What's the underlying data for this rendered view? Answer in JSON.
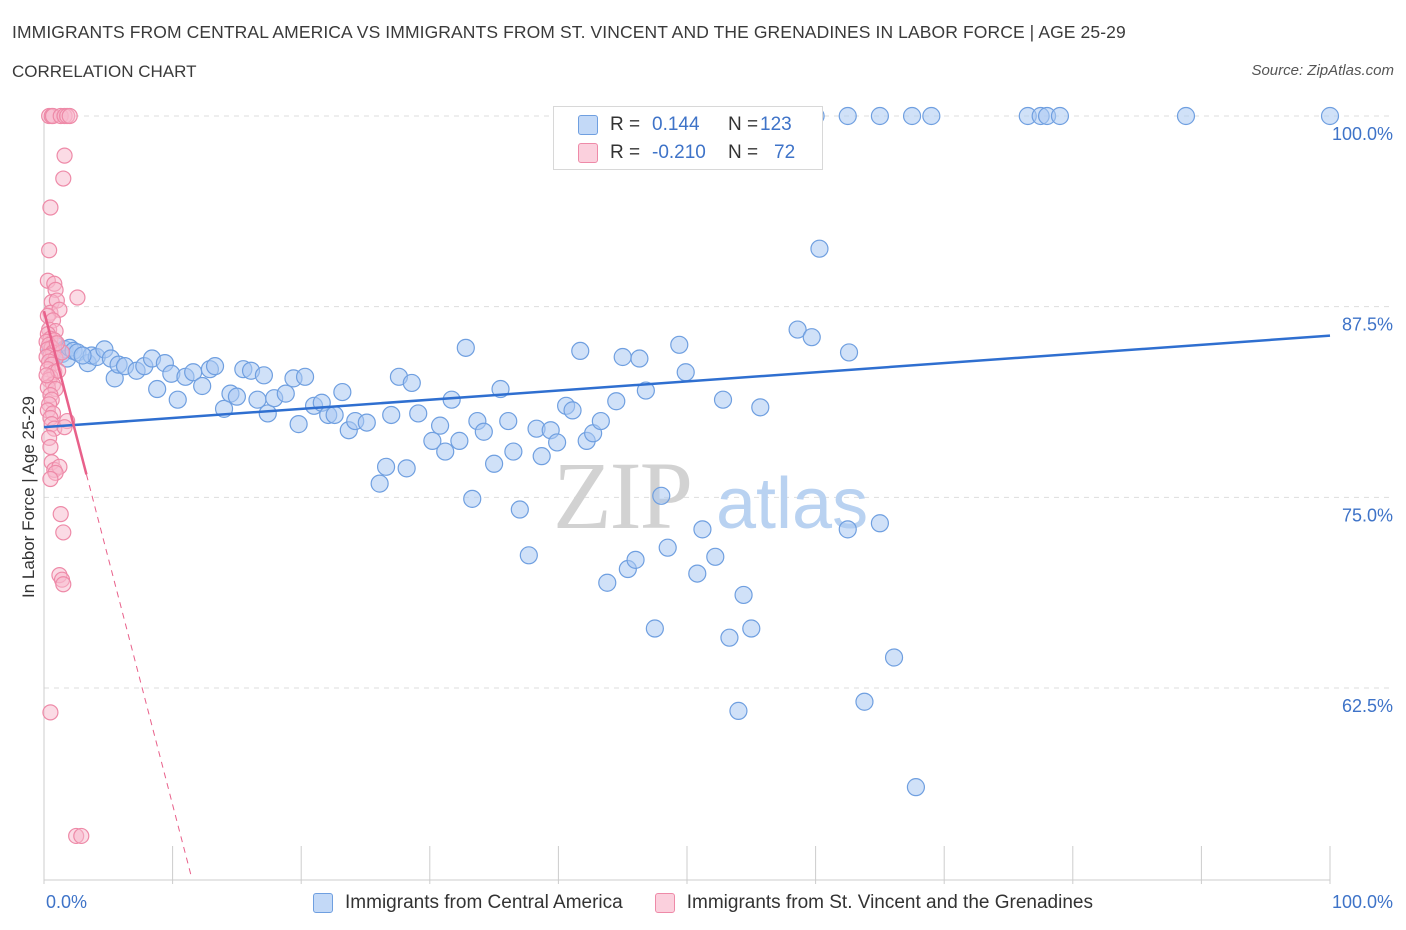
{
  "header": {
    "title": "IMMIGRANTS FROM CENTRAL AMERICA VS IMMIGRANTS FROM ST. VINCENT AND THE GRENADINES IN LABOR FORCE | AGE 25-29",
    "subtitle": "CORRELATION CHART",
    "source": "Source: ZipAtlas.com"
  },
  "watermark": "ZIPatlas",
  "colors": {
    "blue_fill": "#a9c8f3",
    "blue_stroke": "#6f9fe0",
    "blue_line": "#2f6fd0",
    "pink_fill": "#f7b8cc",
    "pink_stroke": "#ee8aa8",
    "pink_line": "#e8608a",
    "accent_text": "#3e73c8",
    "grid": "#dddddd"
  },
  "legend": {
    "rows": [
      {
        "r_label": "R =",
        "r_value": "0.144",
        "n_label": "N =",
        "n_value": "123",
        "color": "blue"
      },
      {
        "r_label": "R =",
        "r_value": "-0.210",
        "n_label": "N =",
        "n_value": "72",
        "color": "pink"
      }
    ]
  },
  "bottom_legend": [
    {
      "label": "Immigrants from Central America",
      "color": "blue"
    },
    {
      "label": "Immigrants from St. Vincent and the Grenadines",
      "color": "pink"
    }
  ],
  "chart_data": {
    "type": "scatter",
    "xlabel": "",
    "ylabel": "In Labor Force | Age 25-29",
    "xlim": [
      0,
      100
    ],
    "ylim": [
      50,
      101
    ],
    "x_tick_labels": [
      {
        "value": 0,
        "label": "0.0%"
      },
      {
        "value": 100,
        "label": "100.0%"
      }
    ],
    "y_tick_labels": [
      {
        "value": 100,
        "label": "100.0%"
      },
      {
        "value": 87.5,
        "label": "87.5%"
      },
      {
        "value": 75,
        "label": "75.0%"
      },
      {
        "value": 62.5,
        "label": "62.5%"
      }
    ],
    "x_minor_ticks": [
      0,
      10,
      20,
      30,
      40,
      50,
      60,
      70,
      80,
      90,
      100
    ],
    "grid": true,
    "series": [
      {
        "name": "Immigrants from Central America",
        "color": "blue",
        "trend": {
          "x": [
            0,
            100
          ],
          "y": [
            79.6,
            85.6
          ]
        },
        "points": [
          [
            0.5,
            84.6
          ],
          [
            0.8,
            84.2
          ],
          [
            1.0,
            84.9
          ],
          [
            1.2,
            84.5
          ],
          [
            1.4,
            84.4
          ],
          [
            1.6,
            84.7
          ],
          [
            1.8,
            84.1
          ],
          [
            2.0,
            84.8
          ],
          [
            2.3,
            84.6
          ],
          [
            2.6,
            84.5
          ],
          [
            3.4,
            83.8
          ],
          [
            3.7,
            84.3
          ],
          [
            4.1,
            84.2
          ],
          [
            4.7,
            84.7
          ],
          [
            5.2,
            84.1
          ],
          [
            5.5,
            82.8
          ],
          [
            5.8,
            83.7
          ],
          [
            6.3,
            83.6
          ],
          [
            7.2,
            83.3
          ],
          [
            7.8,
            83.6
          ],
          [
            8.4,
            84.1
          ],
          [
            8.8,
            82.1
          ],
          [
            9.4,
            83.8
          ],
          [
            9.9,
            83.1
          ],
          [
            10.4,
            81.4
          ],
          [
            11.0,
            82.9
          ],
          [
            11.6,
            83.2
          ],
          [
            12.3,
            82.3
          ],
          [
            12.9,
            83.4
          ],
          [
            13.3,
            83.6
          ],
          [
            14.0,
            80.8
          ],
          [
            14.5,
            81.8
          ],
          [
            15.0,
            81.6
          ],
          [
            15.5,
            83.4
          ],
          [
            16.1,
            83.3
          ],
          [
            16.6,
            81.4
          ],
          [
            17.1,
            83.0
          ],
          [
            17.4,
            80.5
          ],
          [
            17.9,
            81.5
          ],
          [
            18.8,
            81.8
          ],
          [
            19.4,
            82.8
          ],
          [
            19.8,
            79.8
          ],
          [
            20.3,
            82.9
          ],
          [
            21.0,
            81.0
          ],
          [
            21.6,
            81.2
          ],
          [
            22.1,
            80.4
          ],
          [
            22.6,
            80.4
          ],
          [
            23.2,
            81.9
          ],
          [
            23.7,
            79.4
          ],
          [
            24.2,
            80.0
          ],
          [
            25.1,
            79.9
          ],
          [
            26.1,
            75.9
          ],
          [
            26.6,
            77.0
          ],
          [
            27.0,
            80.4
          ],
          [
            27.6,
            82.9
          ],
          [
            28.2,
            76.9
          ],
          [
            28.6,
            82.5
          ],
          [
            29.1,
            80.5
          ],
          [
            30.2,
            78.7
          ],
          [
            30.8,
            79.7
          ],
          [
            31.2,
            78.0
          ],
          [
            31.7,
            81.4
          ],
          [
            32.3,
            78.7
          ],
          [
            32.8,
            84.8
          ],
          [
            33.3,
            74.9
          ],
          [
            33.7,
            80.0
          ],
          [
            34.2,
            79.3
          ],
          [
            35.0,
            77.2
          ],
          [
            35.5,
            82.1
          ],
          [
            36.1,
            80.0
          ],
          [
            36.5,
            78.0
          ],
          [
            37.0,
            74.2
          ],
          [
            37.7,
            71.2
          ],
          [
            38.3,
            79.5
          ],
          [
            38.7,
            77.7
          ],
          [
            39.4,
            79.4
          ],
          [
            39.9,
            78.6
          ],
          [
            40.6,
            81.0
          ],
          [
            41.1,
            80.7
          ],
          [
            41.7,
            84.6
          ],
          [
            42.2,
            78.7
          ],
          [
            42.7,
            79.2
          ],
          [
            43.3,
            80.0
          ],
          [
            43.8,
            69.4
          ],
          [
            44.5,
            81.3
          ],
          [
            45.0,
            84.2
          ],
          [
            45.4,
            70.3
          ],
          [
            46.0,
            70.9
          ],
          [
            46.3,
            84.1
          ],
          [
            46.8,
            82.0
          ],
          [
            47.5,
            66.4
          ],
          [
            48.0,
            75.1
          ],
          [
            48.5,
            71.7
          ],
          [
            49.4,
            85.0
          ],
          [
            49.9,
            83.2
          ],
          [
            50.8,
            70.0
          ],
          [
            51.2,
            72.9
          ],
          [
            52.2,
            71.1
          ],
          [
            52.8,
            81.4
          ],
          [
            53.3,
            65.8
          ],
          [
            54.0,
            61.0
          ],
          [
            54.4,
            68.6
          ],
          [
            55.0,
            66.4
          ],
          [
            55.7,
            80.9
          ],
          [
            58.6,
            86.0
          ],
          [
            59.7,
            85.5
          ],
          [
            60.3,
            91.3
          ],
          [
            62.5,
            72.9
          ],
          [
            62.6,
            84.5
          ],
          [
            63.8,
            61.6
          ],
          [
            65.0,
            73.3
          ],
          [
            66.1,
            64.5
          ],
          [
            67.8,
            56.0
          ],
          [
            56.5,
            100
          ],
          [
            57.5,
            100
          ],
          [
            60.0,
            100
          ],
          [
            62.5,
            100
          ],
          [
            65.0,
            100
          ],
          [
            67.5,
            100
          ],
          [
            69.0,
            100
          ],
          [
            76.5,
            100
          ],
          [
            77.5,
            100
          ],
          [
            78.0,
            100
          ],
          [
            79.0,
            100
          ],
          [
            88.8,
            100
          ],
          [
            100,
            100
          ],
          [
            3.0,
            84.3
          ]
        ]
      },
      {
        "name": "Immigrants from St. Vincent and the Grenadines",
        "color": "pink",
        "trend": {
          "x": [
            0,
            3.3
          ],
          "y": [
            87.2,
            76.5
          ]
        },
        "trend_extension": {
          "x": [
            3.3,
            11.5
          ],
          "y": [
            76.5,
            50
          ]
        },
        "points": [
          [
            0.4,
            100
          ],
          [
            0.6,
            100
          ],
          [
            0.7,
            100
          ],
          [
            1.3,
            100
          ],
          [
            1.6,
            100
          ],
          [
            1.8,
            100
          ],
          [
            2.0,
            100
          ],
          [
            1.6,
            97.4
          ],
          [
            1.5,
            95.9
          ],
          [
            0.5,
            94.0
          ],
          [
            0.4,
            91.2
          ],
          [
            0.3,
            89.2
          ],
          [
            0.8,
            89.0
          ],
          [
            0.9,
            88.6
          ],
          [
            2.6,
            88.1
          ],
          [
            0.6,
            87.8
          ],
          [
            1.0,
            87.9
          ],
          [
            0.5,
            87.1
          ],
          [
            1.2,
            87.3
          ],
          [
            0.3,
            86.9
          ],
          [
            0.7,
            86.6
          ],
          [
            0.4,
            86.0
          ],
          [
            0.9,
            85.9
          ],
          [
            0.3,
            85.7
          ],
          [
            0.5,
            85.4
          ],
          [
            0.8,
            85.3
          ],
          [
            0.2,
            85.2
          ],
          [
            0.4,
            85.0
          ],
          [
            0.6,
            84.8
          ],
          [
            0.3,
            84.7
          ],
          [
            0.7,
            84.5
          ],
          [
            0.5,
            84.3
          ],
          [
            0.2,
            84.2
          ],
          [
            0.9,
            84.1
          ],
          [
            0.4,
            83.9
          ],
          [
            0.6,
            83.7
          ],
          [
            0.3,
            83.4
          ],
          [
            0.8,
            83.2
          ],
          [
            0.5,
            82.9
          ],
          [
            0.4,
            82.7
          ],
          [
            0.7,
            82.4
          ],
          [
            0.3,
            82.2
          ],
          [
            0.9,
            82.1
          ],
          [
            0.5,
            81.7
          ],
          [
            0.6,
            81.4
          ],
          [
            0.4,
            81.1
          ],
          [
            0.3,
            80.7
          ],
          [
            0.7,
            80.5
          ],
          [
            0.5,
            80.2
          ],
          [
            1.8,
            80.0
          ],
          [
            0.6,
            79.8
          ],
          [
            0.8,
            79.5
          ],
          [
            1.6,
            79.6
          ],
          [
            0.4,
            78.9
          ],
          [
            0.5,
            78.3
          ],
          [
            0.6,
            77.3
          ],
          [
            0.8,
            76.8
          ],
          [
            1.2,
            77.0
          ],
          [
            0.9,
            76.6
          ],
          [
            0.5,
            76.2
          ],
          [
            1.3,
            73.9
          ],
          [
            1.5,
            72.7
          ],
          [
            1.2,
            69.9
          ],
          [
            1.4,
            69.6
          ],
          [
            1.5,
            69.3
          ],
          [
            0.5,
            60.9
          ],
          [
            2.5,
            52.8
          ],
          [
            2.9,
            52.8
          ],
          [
            1.1,
            83.3
          ],
          [
            1.4,
            84.5
          ],
          [
            1.0,
            85.1
          ],
          [
            0.2,
            83.0
          ]
        ]
      }
    ]
  }
}
